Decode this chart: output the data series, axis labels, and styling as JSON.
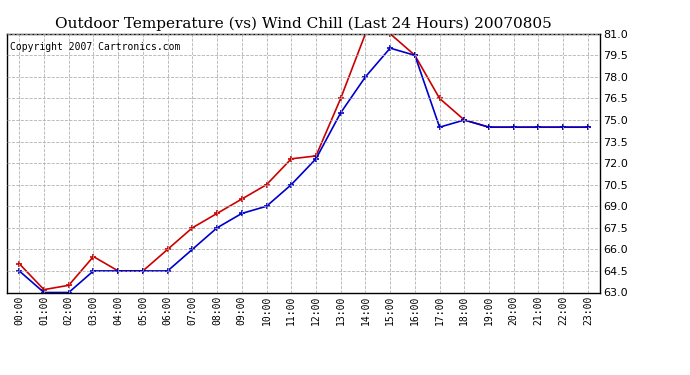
{
  "title": "Outdoor Temperature (vs) Wind Chill (Last 24 Hours) 20070805",
  "copyright": "Copyright 2007 Cartronics.com",
  "hours": [
    "00:00",
    "01:00",
    "02:00",
    "03:00",
    "04:00",
    "05:00",
    "06:00",
    "07:00",
    "08:00",
    "09:00",
    "10:00",
    "11:00",
    "12:00",
    "13:00",
    "14:00",
    "15:00",
    "16:00",
    "17:00",
    "18:00",
    "19:00",
    "20:00",
    "21:00",
    "22:00",
    "23:00"
  ],
  "outdoor_temp": [
    65.0,
    63.2,
    63.5,
    65.5,
    64.5,
    64.5,
    66.0,
    67.5,
    68.5,
    69.5,
    70.5,
    72.3,
    72.5,
    76.5,
    81.0,
    81.0,
    79.5,
    76.5,
    75.0,
    74.5,
    74.5,
    74.5,
    74.5,
    74.5
  ],
  "wind_chill": [
    64.5,
    63.0,
    63.0,
    64.5,
    64.5,
    64.5,
    64.5,
    66.0,
    67.5,
    68.5,
    69.0,
    70.5,
    72.3,
    75.5,
    78.0,
    80.0,
    79.5,
    74.5,
    75.0,
    74.5,
    74.5,
    74.5,
    74.5,
    74.5
  ],
  "temp_color": "#cc0000",
  "wind_color": "#0000cc",
  "ylim_min": 63.0,
  "ylim_max": 81.0,
  "yticks": [
    63.0,
    64.5,
    66.0,
    67.5,
    69.0,
    70.5,
    72.0,
    73.5,
    75.0,
    76.5,
    78.0,
    79.5,
    81.0
  ],
  "bg_color": "#ffffff",
  "plot_bg": "#ffffff",
  "grid_color": "#aaaaaa",
  "marker": "+",
  "markersize": 5,
  "linewidth": 1.2,
  "title_fontsize": 11,
  "copyright_fontsize": 7,
  "tick_fontsize": 7,
  "ylabel_fontsize": 8
}
